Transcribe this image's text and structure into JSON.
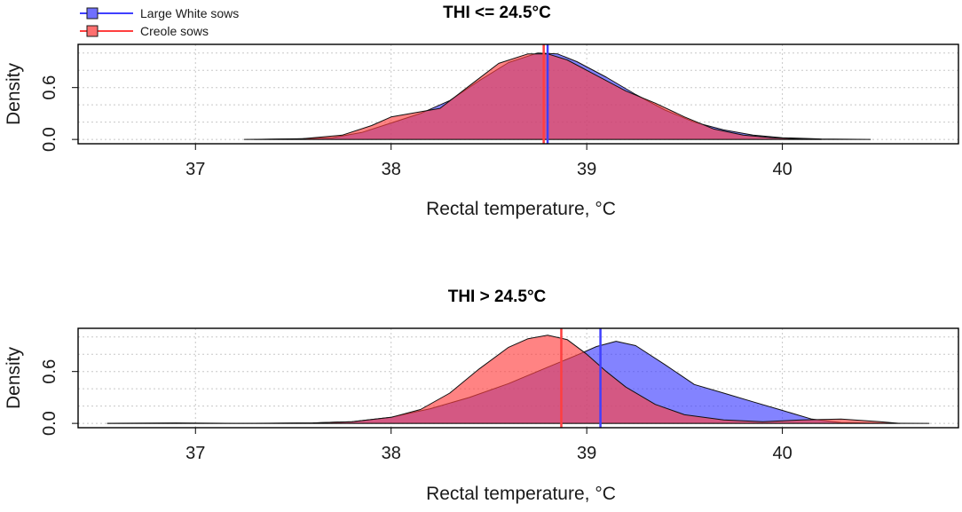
{
  "legend": {
    "items": [
      {
        "label": "Large White sows",
        "color": "#6b6bff"
      },
      {
        "label": "Creole sows",
        "color": "#ff6b6b"
      }
    ]
  },
  "colors": {
    "large_white_fill": "#4040ff",
    "creole_fill": "#ff4040",
    "large_white_line": "#3f3fff",
    "creole_line": "#ff3f3f"
  },
  "chart_data": [
    {
      "type": "area",
      "title": "THI <= 24.5°C",
      "xlabel": "Rectal temperature, °C",
      "ylabel": "Density",
      "xlim": [
        36.4,
        40.9
      ],
      "ylim": [
        -0.05,
        1.1
      ],
      "xticks": [
        37,
        38,
        39,
        40
      ],
      "yticks": [
        0.0,
        0.6
      ],
      "ygrid": [
        0.0,
        0.2,
        0.4,
        0.6,
        0.8,
        1.0
      ],
      "xgrid": [
        37,
        38,
        39,
        40
      ],
      "grid": true,
      "legend_position": "top-left",
      "series": [
        {
          "name": "Large White sows",
          "x": [
            37.25,
            37.5,
            37.7,
            37.85,
            38.0,
            38.15,
            38.3,
            38.45,
            38.6,
            38.75,
            38.85,
            38.95,
            39.1,
            39.25,
            39.4,
            39.55,
            39.7,
            39.85,
            40.0,
            40.2,
            40.45
          ],
          "y": [
            0.0,
            0.005,
            0.02,
            0.08,
            0.19,
            0.3,
            0.45,
            0.68,
            0.89,
            1.0,
            0.99,
            0.9,
            0.72,
            0.52,
            0.34,
            0.2,
            0.11,
            0.05,
            0.02,
            0.005,
            0.0
          ],
          "mean": 38.8
        },
        {
          "name": "Creole sows",
          "x": [
            37.3,
            37.55,
            37.75,
            37.9,
            38.0,
            38.1,
            38.25,
            38.4,
            38.55,
            38.7,
            38.8,
            38.9,
            39.05,
            39.2,
            39.35,
            39.5,
            39.65,
            39.8,
            39.95,
            40.1,
            40.2
          ],
          "y": [
            0.0,
            0.01,
            0.05,
            0.16,
            0.26,
            0.3,
            0.36,
            0.62,
            0.88,
            0.99,
            0.99,
            0.92,
            0.74,
            0.56,
            0.42,
            0.26,
            0.12,
            0.05,
            0.02,
            0.005,
            0.0
          ],
          "mean": 38.78
        }
      ]
    },
    {
      "type": "area",
      "title": "THI > 24.5°C",
      "xlabel": "Rectal temperature, °C",
      "ylabel": "Density",
      "xlim": [
        36.4,
        40.9
      ],
      "ylim": [
        -0.05,
        1.1
      ],
      "xticks": [
        37,
        38,
        39,
        40
      ],
      "yticks": [
        0.0,
        0.6
      ],
      "ygrid": [
        0.0,
        0.2,
        0.4,
        0.6,
        0.8,
        1.0
      ],
      "xgrid": [
        37,
        38,
        39,
        40
      ],
      "grid": true,
      "series": [
        {
          "name": "Large White sows",
          "x": [
            36.55,
            36.8,
            37.0,
            37.3,
            37.6,
            37.8,
            38.0,
            38.2,
            38.4,
            38.6,
            38.8,
            38.95,
            39.05,
            39.15,
            39.25,
            39.4,
            39.55,
            39.7,
            39.85,
            40.0,
            40.15,
            40.3,
            40.5,
            40.75
          ],
          "y": [
            0.0,
            0.0,
            0.0,
            0.0,
            0.005,
            0.02,
            0.07,
            0.17,
            0.3,
            0.46,
            0.65,
            0.79,
            0.89,
            0.95,
            0.9,
            0.68,
            0.45,
            0.35,
            0.25,
            0.15,
            0.05,
            0.01,
            0.002,
            0.0
          ],
          "mean": 39.07
        },
        {
          "name": "Creole sows",
          "x": [
            36.55,
            36.9,
            37.2,
            37.6,
            37.8,
            38.0,
            38.15,
            38.3,
            38.45,
            38.6,
            38.7,
            38.8,
            38.9,
            39.0,
            39.1,
            39.2,
            39.35,
            39.5,
            39.7,
            39.9,
            40.1,
            40.3,
            40.5,
            40.6
          ],
          "y": [
            0.0,
            0.005,
            0.0,
            0.005,
            0.02,
            0.07,
            0.16,
            0.35,
            0.63,
            0.88,
            0.98,
            1.02,
            0.97,
            0.8,
            0.6,
            0.42,
            0.22,
            0.1,
            0.04,
            0.02,
            0.04,
            0.05,
            0.02,
            0.0
          ],
          "mean": 38.87
        }
      ]
    }
  ]
}
